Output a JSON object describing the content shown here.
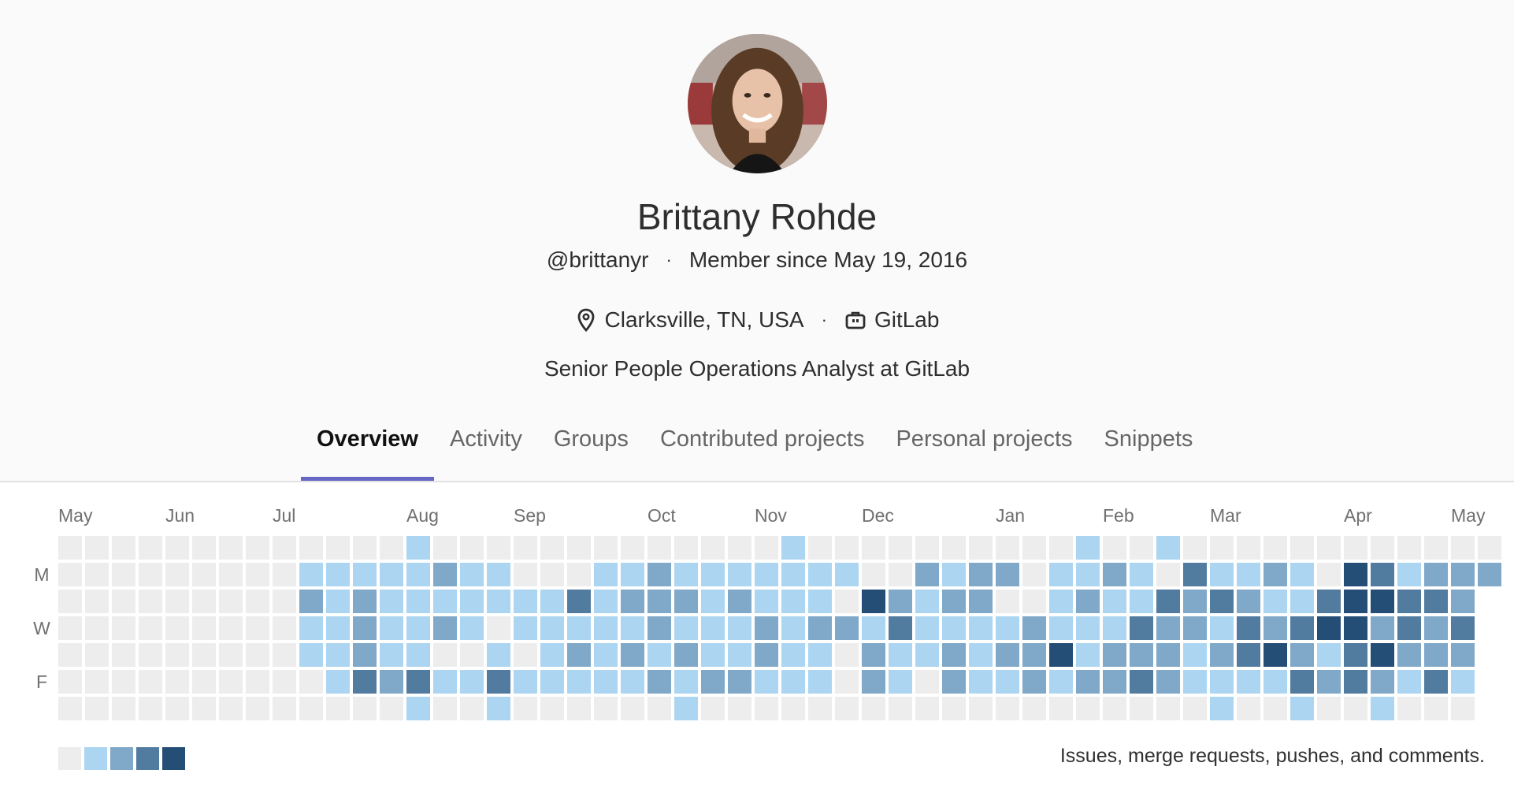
{
  "user": {
    "name": "Brittany Rohde",
    "username": "@brittanyr",
    "member_since": "Member since May 19, 2016",
    "location": "Clarksville, TN, USA",
    "organization": "GitLab",
    "bio": "Senior People Operations Analyst at GitLab"
  },
  "icons": {
    "location": "map-pin-icon",
    "organization": "briefcase-icon"
  },
  "tabs": [
    {
      "label": "Overview",
      "active": true
    },
    {
      "label": "Activity",
      "active": false
    },
    {
      "label": "Groups",
      "active": false
    },
    {
      "label": "Contributed projects",
      "active": false
    },
    {
      "label": "Personal projects",
      "active": false
    },
    {
      "label": "Snippets",
      "active": false
    }
  ],
  "calendar": {
    "months": [
      {
        "label": "May",
        "week": 0
      },
      {
        "label": "Jun",
        "week": 4
      },
      {
        "label": "Jul",
        "week": 8
      },
      {
        "label": "Aug",
        "week": 13
      },
      {
        "label": "Sep",
        "week": 17
      },
      {
        "label": "Oct",
        "week": 22
      },
      {
        "label": "Nov",
        "week": 26
      },
      {
        "label": "Dec",
        "week": 30
      },
      {
        "label": "Jan",
        "week": 35
      },
      {
        "label": "Feb",
        "week": 39
      },
      {
        "label": "Mar",
        "week": 43
      },
      {
        "label": "Apr",
        "week": 48
      },
      {
        "label": "May",
        "week": 52
      }
    ],
    "day_labels": [
      "",
      "M",
      "",
      "W",
      "",
      "F",
      ""
    ],
    "colors": [
      "#ededed",
      "#acd5f2",
      "#7fa8c9",
      "#527ba0",
      "#254e77"
    ],
    "grid": [
      "0000000000000000000000000000000000000000000000000000000",
      "0000000000000000000000000000000000000000000000000000000",
      "0000000000000000000000000000000000000000000000000000000",
      "0000000000000000000000000000000000000000000000000000000",
      "0000000000000000000000000000000000000000000000000000000",
      "0000000000000000000000000000000000000000000000000000000",
      "0000000000000000000000000000000000000000000000000000000"
    ],
    "levels": [
      "00000000000001000000000000010000000000100100000000000",
      "00000000011111211000112111111100212201121031121043122102",
      "0000000002121111111312221211104212200121132321134433232",
      "000000000112112101111121112122131111211132213234423232",
      "00000000011211001012121211211021121224122212342134222022",
      "00000000001323113111112122111021021121223211113232131141",
      "0000000000000100100000010000000000000000000100100100000"
    ],
    "legend_text": "Issues, merge requests, pushes, and comments."
  }
}
